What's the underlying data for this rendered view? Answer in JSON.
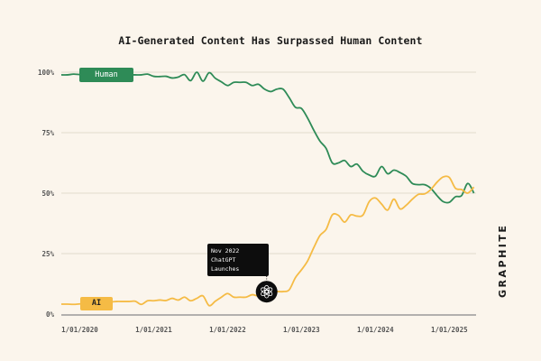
{
  "chart_data": {
    "type": "line",
    "title": "AI-Generated Content Has Surpassed Human Content",
    "xlabel": "",
    "ylabel": "",
    "ylim": [
      0,
      100
    ],
    "yticks": [
      "0%",
      "25%",
      "50%",
      "75%",
      "100%"
    ],
    "ytick_values": [
      0,
      25,
      50,
      75,
      100
    ],
    "xticks": [
      "1/01/2020",
      "1/01/2021",
      "1/01/2022",
      "1/01/2023",
      "1/01/2024",
      "1/01/2025"
    ],
    "xtick_values": [
      "2020-01",
      "2021-01",
      "2022-01",
      "2023-01",
      "2024-01",
      "2025-01"
    ],
    "grid": "horizontal",
    "x": [
      "2019-10",
      "2019-11",
      "2019-12",
      "2020-01",
      "2020-02",
      "2020-03",
      "2020-04",
      "2020-05",
      "2020-06",
      "2020-07",
      "2020-08",
      "2020-09",
      "2020-10",
      "2020-11",
      "2020-12",
      "2021-01",
      "2021-02",
      "2021-03",
      "2021-04",
      "2021-05",
      "2021-06",
      "2021-07",
      "2021-08",
      "2021-09",
      "2021-10",
      "2021-11",
      "2021-12",
      "2022-01",
      "2022-02",
      "2022-03",
      "2022-04",
      "2022-05",
      "2022-06",
      "2022-07",
      "2022-08",
      "2022-09",
      "2022-10",
      "2022-11",
      "2022-12",
      "2023-01",
      "2023-02",
      "2023-03",
      "2023-04",
      "2023-05",
      "2023-06",
      "2023-07",
      "2023-08",
      "2023-09",
      "2023-10",
      "2023-11",
      "2023-12",
      "2024-01",
      "2024-02",
      "2024-03",
      "2024-04",
      "2024-05",
      "2024-06",
      "2024-07",
      "2024-08",
      "2024-09",
      "2024-10",
      "2024-11",
      "2024-12",
      "2025-01",
      "2025-02",
      "2025-03",
      "2025-04",
      "2025-05"
    ],
    "series": [
      {
        "name": "Human",
        "color": "#2e8b57",
        "values": [
          98.9,
          98.9,
          99.2,
          99.0,
          99.0,
          99.0,
          99.0,
          99.0,
          99.0,
          98.9,
          98.9,
          98.9,
          98.9,
          98.9,
          99.2,
          98.3,
          98.2,
          98.3,
          97.6,
          98.0,
          99.0,
          96.5,
          100.0,
          96.3,
          99.8,
          97.5,
          96.0,
          94.5,
          95.8,
          95.8,
          95.8,
          94.5,
          95.0,
          93.0,
          92.0,
          93.0,
          93.0,
          89.5,
          85.5,
          85.0,
          81.0,
          76.0,
          71.5,
          68.5,
          62.5,
          62.5,
          63.5,
          61.0,
          62.0,
          59.0,
          57.5,
          57.0,
          61.0,
          58.0,
          59.5,
          58.5,
          57.0,
          54.0,
          53.5,
          53.5,
          52.0,
          49.0,
          46.5,
          46.2,
          48.5,
          49.0,
          54.0,
          50.0
        ]
      },
      {
        "name": "AI",
        "color": "#f5bb45",
        "values": [
          4.1,
          4.1,
          4.0,
          4.2,
          4.3,
          4.4,
          4.5,
          4.5,
          5.0,
          5.2,
          5.2,
          5.2,
          5.3,
          4.0,
          5.5,
          5.5,
          5.8,
          5.6,
          6.5,
          5.8,
          7.0,
          5.5,
          6.5,
          7.5,
          3.5,
          5.3,
          7.0,
          8.5,
          7.0,
          7.0,
          7.0,
          8.0,
          7.5,
          8.5,
          9.0,
          9.3,
          9.3,
          10.0,
          15.0,
          18.3,
          22.0,
          27.5,
          32.5,
          35.0,
          41.0,
          40.8,
          38.0,
          41.0,
          40.5,
          41.0,
          46.5,
          48.0,
          45.5,
          43.0,
          47.5,
          43.5,
          45.0,
          47.5,
          49.5,
          49.7,
          51.5,
          54.5,
          56.7,
          56.5,
          52.0,
          51.5,
          50.0,
          52.5
        ]
      }
    ],
    "annotation": {
      "date": "2022-11",
      "series": "AI",
      "lines": [
        "Nov 2022",
        "ChatGPT Launches"
      ],
      "icon": "openai-logo-icon"
    }
  },
  "logo": "GRAPHITE",
  "colors": {
    "background": "#fbf5ec",
    "grid": "#e2dacd",
    "axis": "#9a9a9a"
  }
}
